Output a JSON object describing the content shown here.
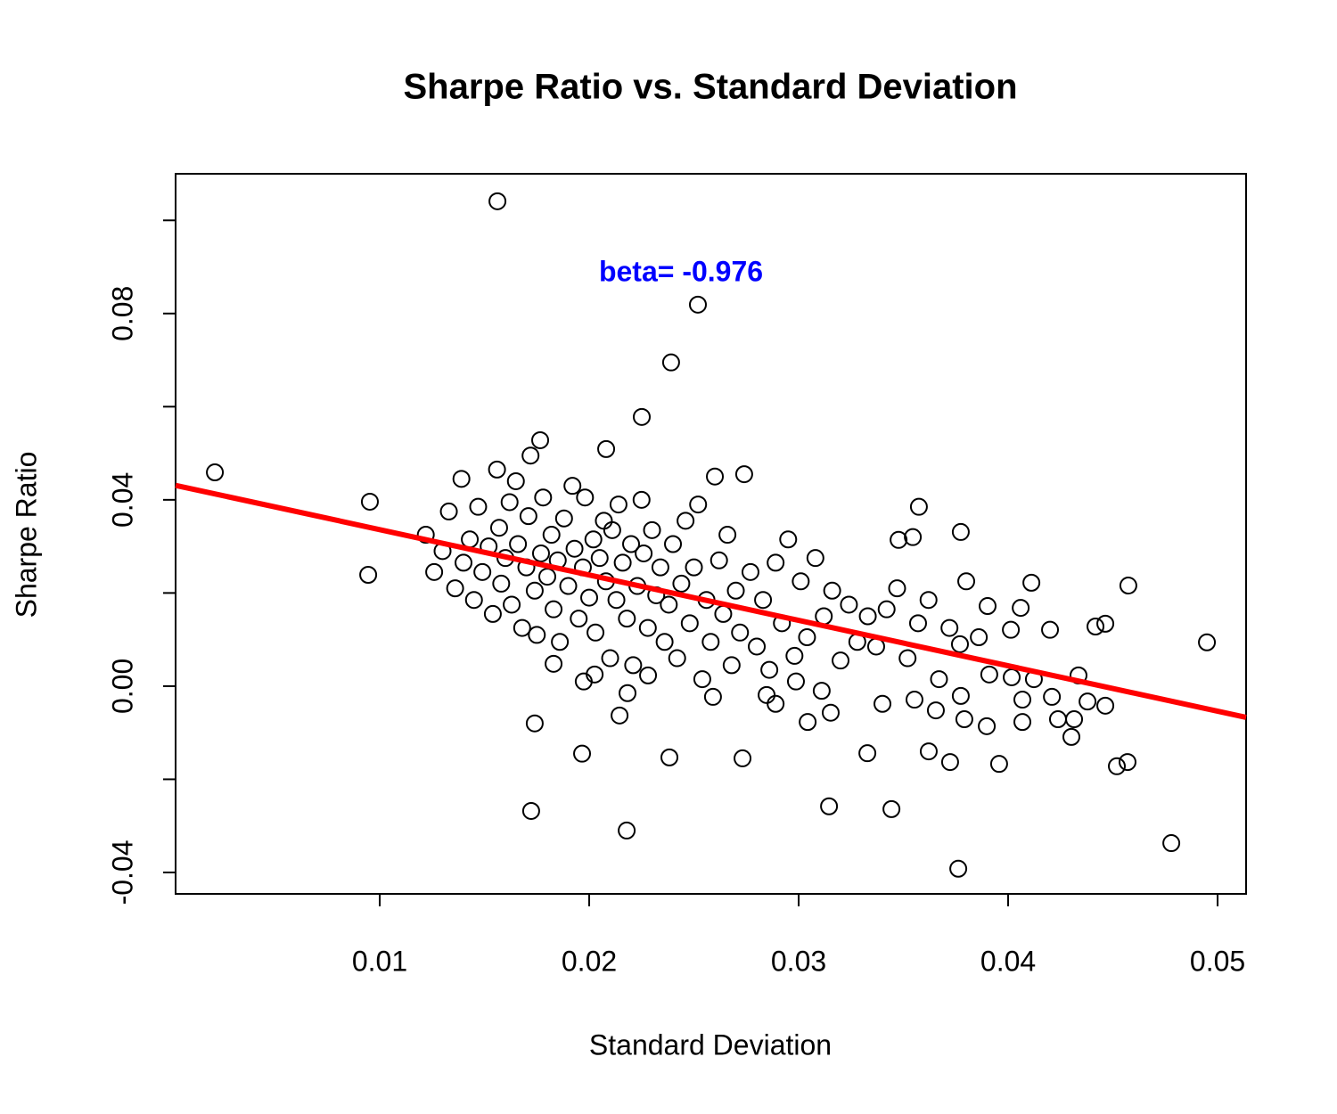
{
  "chart_data": {
    "type": "scatter",
    "title": "Sharpe Ratio vs. Standard Deviation",
    "x_label": "Standard Deviation",
    "y_label": "Sharpe Ratio",
    "annotation": "beta= -0.976",
    "annotation_color": "#0000ff",
    "point_color": "#000000",
    "xlim": [
      0.000255,
      0.05136
    ],
    "ylim": [
      -0.0446,
      0.11
    ],
    "xticks": [
      0.01,
      0.02,
      0.03,
      0.04,
      0.05
    ],
    "yticks": [
      -0.04,
      {
        "value": 0,
        "label": "0.00"
      },
      0.04,
      0.08
    ],
    "yminor_ticks": [
      -0.02,
      0.02,
      0.06,
      0.1
    ],
    "fit_line": {
      "color": "#ff0000",
      "x": [
        0.000255,
        0.05136
      ],
      "values": [
        0.0431,
        -0.0067
      ]
    },
    "x": [
      0.00213,
      0.00953,
      0.00945,
      0.01562,
      0.02519,
      0.02391,
      0.02251,
      0.01766,
      0.02081,
      0.0174,
      0.01723,
      0.02179,
      0.01966,
      0.02383,
      0.02732,
      0.03145,
      0.03443,
      0.03762,
      0.04779,
      0.04949,
      0.04574,
      0.04111,
      0.03574,
      0.03774,
      0.03545,
      0.03477,
      0.04519,
      0.0457,
      0.03957,
      0.03723,
      0.03621,
      0.03328,
      0.03898,
      0.04302,
      0.04315,
      0.04238,
      0.04068,
      0.04464,
      0.04417,
      0.042,
      0.04013,
      0.0406,
      0.03902,
      0.04336,
      0.04379,
      0.04464,
      0.04209,
      0.04017,
      0.04123,
      0.04068,
      0.03791,
      0.03655,
      0.034,
      0.03553,
      0.03774,
      0.03043,
      0.03153,
      0.0311,
      0.02987,
      0.02847,
      0.0289,
      0.02591,
      0.02183,
      0.02145,
      0.01974,
      0.02026,
      0.0183,
      0.02281,
      0.0122,
      0.0126,
      0.013,
      0.0133,
      0.0136,
      0.0139,
      0.014,
      0.0143,
      0.0145,
      0.0147,
      0.0149,
      0.0152,
      0.0154,
      0.0156,
      0.0157,
      0.0158,
      0.016,
      0.0162,
      0.0163,
      0.0165,
      0.0166,
      0.0168,
      0.017,
      0.0171,
      0.0172,
      0.0174,
      0.0175,
      0.0177,
      0.0178,
      0.018,
      0.0182,
      0.0183,
      0.0185,
      0.0186,
      0.0188,
      0.019,
      0.0192,
      0.0193,
      0.0195,
      0.0197,
      0.0198,
      0.02,
      0.0202,
      0.0203,
      0.0205,
      0.0207,
      0.0208,
      0.021,
      0.0211,
      0.0213,
      0.0214,
      0.0216,
      0.0218,
      0.022,
      0.0221,
      0.0223,
      0.0225,
      0.0226,
      0.0228,
      0.023,
      0.0232,
      0.0234,
      0.0236,
      0.0238,
      0.024,
      0.0242,
      0.0244,
      0.0246,
      0.0248,
      0.025,
      0.0252,
      0.0254,
      0.0256,
      0.0258,
      0.026,
      0.0262,
      0.0264,
      0.0266,
      0.0268,
      0.027,
      0.0272,
      0.0274,
      0.0277,
      0.028,
      0.0283,
      0.0286,
      0.0289,
      0.0292,
      0.0295,
      0.0298,
      0.0301,
      0.0304,
      0.0308,
      0.0312,
      0.0316,
      0.032,
      0.0324,
      0.0328,
      0.0333,
      0.0337,
      0.0342,
      0.0347,
      0.0352,
      0.0357,
      0.0362,
      0.0367,
      0.0372,
      0.0377,
      0.038,
      0.0386,
      0.0391
    ],
    "values": [
      0.0459,
      0.0396,
      0.0239,
      0.1041,
      0.0819,
      0.0695,
      0.0578,
      0.0528,
      0.0509,
      -0.008,
      -0.0268,
      -0.031,
      -0.0145,
      -0.0153,
      -0.0155,
      -0.0258,
      -0.0264,
      -0.0392,
      -0.0337,
      0.0094,
      0.0216,
      0.0222,
      0.0385,
      0.0331,
      0.032,
      0.0314,
      -0.0172,
      -0.0163,
      -0.0167,
      -0.0163,
      -0.014,
      -0.0144,
      -0.0086,
      -0.0109,
      -0.0071,
      -0.0071,
      -0.0077,
      0.0134,
      0.0128,
      0.0121,
      0.0121,
      0.0168,
      0.0172,
      0.0023,
      -0.0033,
      -0.0042,
      -0.0023,
      0.0019,
      0.0015,
      -0.0029,
      -0.0071,
      -0.0052,
      -0.0038,
      -0.0029,
      -0.0021,
      -0.0077,
      -0.0057,
      -0.001,
      0.001,
      -0.0019,
      -0.0038,
      -0.0023,
      -0.0015,
      -0.0063,
      0.001,
      0.0025,
      0.0048,
      0.0023,
      0.0325,
      0.0245,
      0.029,
      0.0375,
      0.021,
      0.0445,
      0.0265,
      0.0315,
      0.0185,
      0.0385,
      0.0245,
      0.03,
      0.0155,
      0.0465,
      0.034,
      0.022,
      0.0275,
      0.0395,
      0.0175,
      0.044,
      0.0305,
      0.0125,
      0.0255,
      0.0365,
      0.0495,
      0.0205,
      0.011,
      0.0285,
      0.0405,
      0.0235,
      0.0325,
      0.0165,
      0.027,
      0.0095,
      0.036,
      0.0215,
      0.043,
      0.0295,
      0.0145,
      0.0255,
      0.0405,
      0.019,
      0.0315,
      0.0115,
      0.0275,
      0.0355,
      0.0225,
      0.006,
      0.0335,
      0.0185,
      0.039,
      0.0265,
      0.0145,
      0.0305,
      0.0045,
      0.0215,
      0.04,
      0.0285,
      0.0125,
      0.0335,
      0.0195,
      0.0255,
      0.0095,
      0.0175,
      0.0305,
      0.006,
      0.022,
      0.0355,
      0.0135,
      0.0255,
      0.039,
      0.0015,
      0.0185,
      0.0095,
      0.045,
      0.027,
      0.0155,
      0.0325,
      0.0045,
      0.0205,
      0.0115,
      0.0455,
      0.0245,
      0.0085,
      0.0185,
      0.0035,
      0.0265,
      0.0135,
      0.0315,
      0.0065,
      0.0225,
      0.0105,
      0.0275,
      0.015,
      0.0205,
      0.0055,
      0.0175,
      0.0095,
      0.015,
      0.0085,
      0.0165,
      0.021,
      0.006,
      0.0135,
      0.0185,
      0.0015,
      0.0125,
      0.009,
      0.0225,
      0.0105,
      0.0025
    ]
  }
}
